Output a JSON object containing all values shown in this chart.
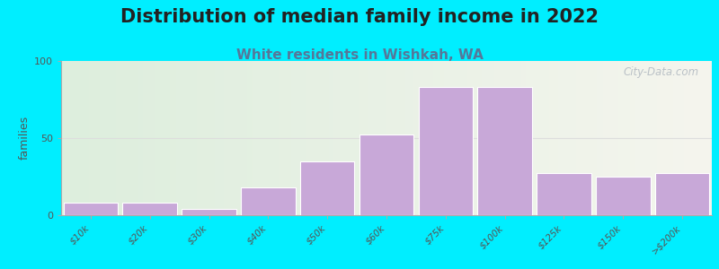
{
  "title": "Distribution of median family income in 2022",
  "subtitle": "White residents in Wishkah, WA",
  "categories": [
    "$10k",
    "$20k",
    "$30k",
    "$40k",
    "$50k",
    "$60k",
    "$75k",
    "$100k",
    "$125k",
    "$150k",
    ">$200k"
  ],
  "values": [
    8,
    8,
    4,
    18,
    35,
    52,
    83,
    83,
    27,
    25,
    27
  ],
  "bar_color": "#c8a8d8",
  "bar_edge_color": "#ffffff",
  "ylabel": "families",
  "ylim": [
    0,
    100
  ],
  "yticks": [
    0,
    50,
    100
  ],
  "background_outer": "#00eeff",
  "background_left": "#ddeedd",
  "background_right": "#f5f5ee",
  "title_fontsize": 15,
  "subtitle_fontsize": 11,
  "subtitle_color": "#557799",
  "watermark": "City-Data.com",
  "grid_color": "#dddddd"
}
